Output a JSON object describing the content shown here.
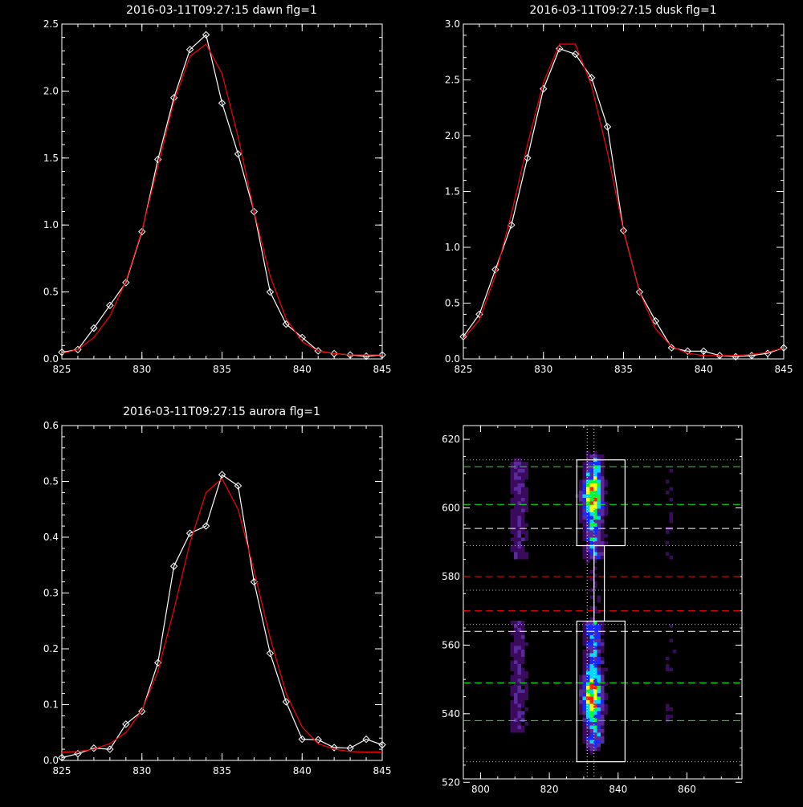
{
  "chart_data": [
    {
      "id": "dawn",
      "type": "line",
      "title": "2016-03-11T09:27:15 dawn flg=1",
      "xlabel": "",
      "ylabel": "",
      "xlim": [
        825,
        845
      ],
      "ylim": [
        0,
        2.5
      ],
      "xticks": [
        825,
        830,
        835,
        840,
        845
      ],
      "yticks": [
        0.0,
        0.5,
        1.0,
        1.5,
        2.0,
        2.5
      ],
      "ytick_labels": [
        "0.0",
        "0.5",
        "1.0",
        "1.5",
        "2.0",
        "2.5"
      ],
      "series": [
        {
          "color": "#ffffff",
          "marker": "diamond",
          "x": [
            825,
            826,
            827,
            828,
            829,
            830,
            831,
            832,
            833,
            834,
            835,
            836,
            837,
            838,
            839,
            840,
            841,
            842,
            843,
            844,
            845
          ],
          "y": [
            0.05,
            0.07,
            0.23,
            0.4,
            0.57,
            0.95,
            1.49,
            1.95,
            2.31,
            2.42,
            1.91,
            1.53,
            1.1,
            0.5,
            0.26,
            0.16,
            0.06,
            0.04,
            0.03,
            0.02,
            0.03
          ]
        },
        {
          "color": "#ff0000",
          "marker": "none",
          "x": [
            825,
            826,
            827,
            828,
            829,
            830,
            831,
            832,
            833,
            834,
            835,
            836,
            837,
            838,
            839,
            840,
            841,
            842,
            843,
            844,
            845
          ],
          "y": [
            0.04,
            0.07,
            0.16,
            0.32,
            0.58,
            0.96,
            1.44,
            1.92,
            2.26,
            2.35,
            2.13,
            1.66,
            1.1,
            0.62,
            0.3,
            0.13,
            0.06,
            0.04,
            0.03,
            0.03,
            0.03
          ]
        }
      ]
    },
    {
      "id": "dusk",
      "type": "line",
      "title": "2016-03-11T09:27:15 dusk flg=1",
      "xlabel": "",
      "ylabel": "",
      "xlim": [
        825,
        845
      ],
      "ylim": [
        0,
        3.0
      ],
      "xticks": [
        825,
        830,
        835,
        840,
        845
      ],
      "yticks": [
        0.0,
        0.5,
        1.0,
        1.5,
        2.0,
        2.5,
        3.0
      ],
      "ytick_labels": [
        "0.0",
        "0.5",
        "1.0",
        "1.5",
        "2.0",
        "2.5",
        "3.0"
      ],
      "series": [
        {
          "color": "#ffffff",
          "marker": "diamond",
          "x": [
            825,
            826,
            827,
            828,
            829,
            830,
            831,
            832,
            833,
            834,
            835,
            836,
            837,
            838,
            839,
            840,
            841,
            842,
            843,
            844,
            845
          ],
          "y": [
            0.2,
            0.4,
            0.8,
            1.2,
            1.8,
            2.42,
            2.78,
            2.73,
            2.52,
            2.08,
            1.15,
            0.6,
            0.34,
            0.1,
            0.07,
            0.07,
            0.03,
            0.02,
            0.03,
            0.05,
            0.1
          ]
        },
        {
          "color": "#ff0000",
          "marker": "none",
          "x": [
            825,
            826,
            827,
            828,
            829,
            830,
            831,
            832,
            833,
            834,
            835,
            836,
            837,
            838,
            839,
            840,
            841,
            842,
            843,
            844,
            845
          ],
          "y": [
            0.18,
            0.35,
            0.75,
            1.3,
            1.92,
            2.48,
            2.82,
            2.82,
            2.45,
            1.85,
            1.15,
            0.6,
            0.27,
            0.11,
            0.05,
            0.03,
            0.03,
            0.03,
            0.04,
            0.06,
            0.1
          ]
        }
      ]
    },
    {
      "id": "aurora",
      "type": "line",
      "title": "2016-03-11T09:27:15 aurora flg=1",
      "xlabel": "",
      "ylabel": "",
      "xlim": [
        825,
        845
      ],
      "ylim": [
        0,
        0.6
      ],
      "xticks": [
        825,
        830,
        835,
        840,
        845
      ],
      "yticks": [
        0.0,
        0.1,
        0.2,
        0.3,
        0.4,
        0.5,
        0.6
      ],
      "ytick_labels": [
        "0.0",
        "0.1",
        "0.2",
        "0.3",
        "0.4",
        "0.5",
        "0.6"
      ],
      "series": [
        {
          "color": "#ffffff",
          "marker": "diamond",
          "x": [
            825,
            826,
            827,
            828,
            829,
            830,
            831,
            832,
            833,
            834,
            835,
            836,
            837,
            838,
            839,
            840,
            841,
            842,
            843,
            844,
            845
          ],
          "y": [
            0.005,
            0.012,
            0.022,
            0.02,
            0.065,
            0.088,
            0.175,
            0.348,
            0.407,
            0.42,
            0.512,
            0.492,
            0.32,
            0.192,
            0.105,
            0.038,
            0.037,
            0.023,
            0.022,
            0.038,
            0.028
          ]
        },
        {
          "color": "#ff0000",
          "marker": "none",
          "x": [
            825,
            826,
            827,
            828,
            829,
            830,
            831,
            832,
            833,
            834,
            835,
            836,
            837,
            838,
            839,
            840,
            841,
            842,
            843,
            844,
            845
          ],
          "y": [
            0.015,
            0.016,
            0.02,
            0.03,
            0.05,
            0.09,
            0.16,
            0.27,
            0.39,
            0.48,
            0.505,
            0.45,
            0.34,
            0.22,
            0.12,
            0.06,
            0.03,
            0.02,
            0.016,
            0.015,
            0.015
          ]
        }
      ]
    },
    {
      "id": "spectral-image",
      "type": "heatmap",
      "title": "",
      "xlabel": "",
      "ylabel": "",
      "xlim": [
        795,
        876
      ],
      "ylim": [
        521,
        624
      ],
      "xticks": [
        800,
        820,
        840,
        860
      ],
      "yticks": [
        520,
        540,
        560,
        580,
        600,
        620
      ],
      "colormap": [
        "#000000",
        "#3a0a5c",
        "#5a2a9c",
        "#1a2aff",
        "#00d8ff",
        "#00ff30",
        "#ffff00",
        "#ff2000"
      ],
      "emission_bands": [
        {
          "x": 811,
          "y_range": [
            537,
            612
          ],
          "peak": 0.5
        },
        {
          "x": 833,
          "y_range": [
            532,
            613
          ],
          "peak": 0.95
        },
        {
          "x": 855,
          "y_range": [
            537,
            612
          ],
          "peak": 0.2
        }
      ],
      "hotspots": [
        {
          "x": 832,
          "y": 603,
          "value": 0.95
        },
        {
          "x": 832,
          "y": 545,
          "value": 0.9
        }
      ],
      "overlays": {
        "green_dashed_y": [
          612,
          601,
          549,
          538
        ],
        "white_dashed_y": [
          594,
          564
        ],
        "red_dashed_y": [
          580,
          570
        ],
        "dotted_y": [
          614,
          589,
          576,
          566,
          526
        ],
        "dotted_x": [
          831,
          833
        ],
        "box_upper": {
          "x_range": [
            828,
            842
          ],
          "y_range": [
            589,
            614
          ]
        },
        "box_lower": {
          "x_range": [
            828,
            842
          ],
          "y_range": [
            526,
            567
          ]
        },
        "connector": {
          "x_range": [
            833,
            836
          ],
          "y_range": [
            567,
            589
          ]
        }
      }
    }
  ]
}
